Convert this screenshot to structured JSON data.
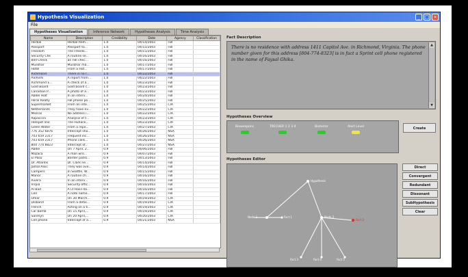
{
  "window": {
    "title": "Hypothesis Visualization"
  },
  "menu": [
    "File"
  ],
  "tabs": [
    {
      "label": "Hypotheses Visualization",
      "active": true
    },
    {
      "label": "Inference Network",
      "active": false
    },
    {
      "label": "Hypotheses Analysis",
      "active": false
    },
    {
      "label": "Time Analysis",
      "active": false
    }
  ],
  "table": {
    "columns": [
      "Name",
      "Description",
      "Credibility",
      "Date",
      "Agency",
      "Classification"
    ],
    "rows": [
      [
        "Herbal",
        "Herbal Rem...",
        "1.0",
        "04/14/2003",
        "FBI",
        ""
      ],
      [
        "Passport",
        "Passport to...",
        "1.0",
        "04/15/2003",
        "FBI",
        ""
      ],
      [
        "Freedom",
        "The Freedo...",
        "1.0",
        "04/15/2003",
        "FBI",
        ""
      ],
      [
        "Security Chk",
        "A routine se...",
        "1.0",
        "04/16/2003",
        "FBI",
        ""
      ],
      [
        "Bell Check",
        "an FBI chec...",
        "1.0",
        "04/16/2003",
        "FBI",
        ""
      ],
      [
        "Muskhar",
        "Muskhar ma...",
        "1.0",
        "04/17/2003",
        "FBI",
        ""
      ],
      [
        "Hotel",
        "From a Hot...",
        "1.0",
        "04/17/2003",
        "FBI",
        ""
      ],
      [
        "Richmond",
        "There is no r...",
        "1.0",
        "04/22/2003",
        "FBI",
        ""
      ],
      [
        "Ali/Rishi",
        "A report from...",
        "1.0",
        "04/22/2003",
        "FBI",
        ""
      ],
      [
        "Richmond E...",
        "A check of a...",
        "1.0",
        "04/23/2003",
        "FBI",
        ""
      ],
      [
        "Gold Board",
        "Gold board c...",
        "1.0",
        "04/23/2003",
        "FBI",
        ""
      ],
      [
        "Canadian P...",
        "A photo of a...",
        "1.0",
        "04/23/2003",
        "FBI",
        ""
      ],
      [
        "Abdel Holt",
        "In an interv...",
        "1.0",
        "04/24/2003",
        "FBI",
        ""
      ],
      [
        "Hilral Realty",
        "FBI phone po...",
        "1.0",
        "04/25/2003",
        "FBI",
        ""
      ],
      [
        "Supermarket",
        "From an inte...",
        "1.0",
        "04/25/2003",
        "CIA",
        ""
      ],
      [
        "Netherlands",
        "They have ev...",
        "1.0",
        "04/22/2003",
        "CIA",
        ""
      ],
      [
        "Mezcal",
        "No address i...",
        "1.0",
        "04/22/2003",
        "CIA",
        ""
      ],
      [
        "Rapaccini",
        "Analysis of t...",
        "1.0",
        "04/23/2003",
        "CIA",
        ""
      ],
      [
        "Hotspot line",
        "The Huhack...",
        "1.0",
        "04/23/2003",
        "CIA",
        ""
      ],
      [
        "Gelen Water",
        "From a repo...",
        "1.0",
        "04/27/2003",
        "CIA",
        ""
      ],
      [
        "776 352 6876",
        "Intercept sho...",
        "1.0",
        "04/26/2003",
        "NSA",
        ""
      ],
      [
        "703 659 2317",
        "Frequent inc...",
        "1.0",
        "04/26/2003",
        "NSA",
        ""
      ],
      [
        "703 659 2317",
        "Phone calls...",
        "1.0",
        "04/26/2003",
        "NSA",
        ""
      ],
      [
        "804 774 8823",
        "Intercept of...",
        "1.0",
        "04/27/2003",
        "NSA",
        ""
      ],
      [
        "Abdel",
        "On 7 April, 2...",
        "0.9",
        "04/06/2003",
        "FBI",
        ""
      ],
      [
        "Mazaca",
        "A man wro...",
        "0.9",
        "04/07/2003",
        "FBI",
        ""
      ],
      [
        "El Paso",
        "Border patro...",
        "0.9",
        "04/13/2003",
        "FBI",
        ""
      ],
      [
        "Dr. Atlantis",
        "Dr. Clark ne...",
        "0.9",
        "04/14/2003",
        "FBI",
        ""
      ],
      [
        "Jamal Alsic",
        "They was ove...",
        "0.9",
        "04/14/2003",
        "FBI",
        ""
      ],
      [
        "Campers",
        "In Seattle, W...",
        "0.9",
        "04/15/2003",
        "FBI",
        ""
      ],
      [
        "Manor",
        "A routine ch...",
        "0.9",
        "04/16/2003",
        "FBI",
        ""
      ],
      [
        "Rivera",
        "In an interv...",
        "0.9",
        "04/16/2003",
        "FBI",
        ""
      ],
      [
        "Virpia",
        "Security offic...",
        "0.9",
        "04/16/2003",
        "FBI",
        ""
      ],
      [
        "Al Bad",
        "A Lt Hasil da...",
        "0.9",
        "04/16/2003",
        "FBI",
        ""
      ],
      [
        "Cell",
        "A note name...",
        "0.9",
        "04/17/2003",
        "FBI",
        ""
      ],
      [
        "Omar",
        "On 30 March...",
        "0.9",
        "04/19/2003",
        "CIA",
        ""
      ],
      [
        "Disband",
        "From a detai...",
        "0.9",
        "04/19/2003",
        "CIA",
        ""
      ],
      [
        "French",
        "Acting on a ti...",
        "0.9",
        "04/19/2003",
        "CIA",
        ""
      ],
      [
        "Car bomb",
        "On 15 April,...",
        "0.9",
        "04/19/2003",
        "CIA",
        ""
      ],
      [
        "Sanmyn",
        "On 20 April,...",
        "0.9",
        "04/20/2003",
        "CIA",
        ""
      ],
      [
        "Cell phone",
        "Intercept of a...",
        "0.9",
        "04/21/2003",
        "NSA",
        ""
      ]
    ],
    "selected_index": 7
  },
  "fact": {
    "title": "Fact Description",
    "text": "There is no residence with address 1411 Capitol Ave. in Richmond, Virginia. The phone number given for this address [804-774-8323] is in fact a Sprint cell phone registered in the name of Faysal Ghika."
  },
  "overview": {
    "title": "Hypotheses Overview",
    "items": [
      {
        "label": "Bioweapons",
        "color": "green"
      },
      {
        "label": "TRECHER 1 2 3 4",
        "color": "green"
      },
      {
        "label": "Bioterror",
        "color": "green"
      },
      {
        "label": "Alert Level",
        "color": "yellow"
      }
    ],
    "create_label": "Create"
  },
  "editor": {
    "title": "Hypotheses Editor",
    "buttons": [
      "Direct",
      "Convergent",
      "Redundant",
      "Dissonant",
      "SubHypothesis",
      "Clear"
    ],
    "nodes": [
      {
        "label": "Hypothesis",
        "color": "white"
      },
      {
        "label": "Node 1",
        "color": "white"
      },
      {
        "label": "Fact 1",
        "color": "white"
      },
      {
        "label": "Node 2",
        "color": "white"
      },
      {
        "label": "Fact 2",
        "color": "red"
      },
      {
        "label": "Fact 3",
        "color": "white"
      },
      {
        "label": "Fact 4",
        "color": "white"
      },
      {
        "label": "Fact 5",
        "color": "white"
      }
    ]
  }
}
